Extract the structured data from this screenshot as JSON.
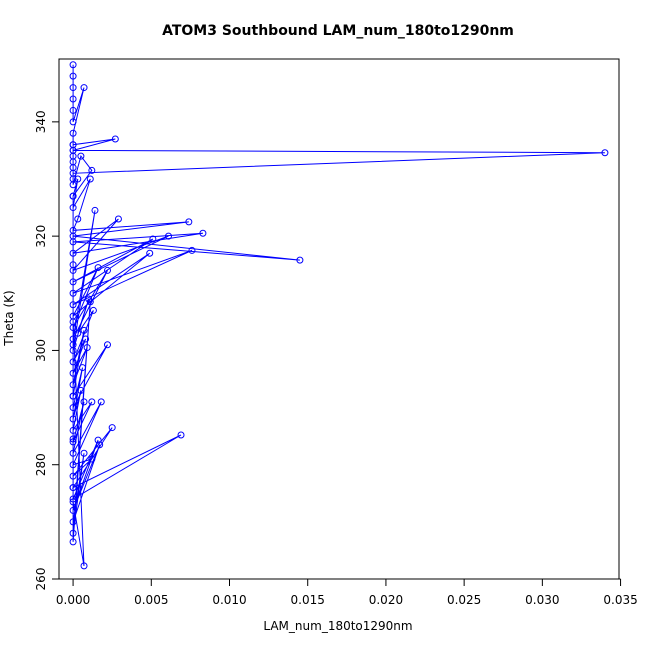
{
  "chart_data": {
    "type": "line",
    "title": "ATOM3 Southbound LAM_num_180to1290nm",
    "xlabel": "LAM_num_180to1290nm",
    "ylabel": "Theta (K)",
    "xlim": [
      -0.0009,
      0.0349
    ],
    "ylim": [
      260,
      351
    ],
    "x_ticks": [
      0.0,
      0.005,
      0.01,
      0.015,
      0.02,
      0.025,
      0.03,
      0.035
    ],
    "x_tick_labels": [
      "0.000",
      "0.005",
      "0.010",
      "0.015",
      "0.020",
      "0.025",
      "0.030",
      "0.035"
    ],
    "y_ticks": [
      260,
      280,
      300,
      320,
      340
    ],
    "y_tick_labels": [
      "260",
      "280",
      "300",
      "320",
      "340"
    ],
    "grid": false,
    "legend": "none",
    "series_color": "#0000ff",
    "marker": "open-circle",
    "series": [
      {
        "x": [
          0.0,
          0.0,
          0.0,
          0.0,
          0.0,
          0.0,
          0.0007,
          0.0,
          0.0,
          0.0,
          0.0,
          0.0,
          0.0,
          0.0027,
          0.0,
          0.0,
          0.0,
          0.034,
          0.0,
          0.0,
          0.0005,
          0.0012,
          0.0,
          0.0003,
          0.0,
          0.0011,
          0.0003,
          0.0,
          0.0074,
          0.0,
          0.0145,
          0.0,
          0.0083,
          0.0,
          0.0029,
          0.0,
          0.0061,
          0.0,
          0.0051,
          0.0,
          0.0076,
          0.0,
          0.0049,
          0.0,
          0.0016,
          0.0,
          0.0022,
          0.0,
          0.0014,
          0.0,
          0.001,
          0.0003,
          0.0013,
          0.0,
          0.0008,
          0.0,
          0.0009,
          0.0,
          0.0007,
          0.0,
          0.0022,
          0.0,
          0.0006,
          0.0,
          0.0005,
          0.0,
          0.0012,
          0.0,
          0.0007,
          0.0,
          0.0018,
          0.0,
          0.0012,
          0.0,
          0.0025,
          0.0,
          0.0069,
          0.0,
          0.0016,
          0.0,
          0.0017,
          0.0,
          0.0007,
          0.0,
          0.0011,
          0.0,
          0.0,
          0.0,
          0.0,
          0.0,
          0.0,
          0.0,
          0.0007,
          0.0,
          0.0
        ],
        "y": [
          350,
          348,
          346,
          344,
          342,
          340,
          346,
          338,
          336,
          334,
          332,
          330,
          336,
          337,
          335,
          333,
          335,
          334.6,
          331,
          329,
          334,
          331.5,
          327,
          330,
          325,
          330,
          323,
          321,
          322.5,
          320,
          315.8,
          319,
          320.5,
          317,
          323,
          314,
          320,
          312,
          319.5,
          310,
          317.5,
          308,
          317,
          306,
          314.5,
          304,
          314,
          302,
          324.5,
          300,
          309,
          303,
          307,
          298,
          302,
          296,
          300.5,
          294,
          303.5,
          292,
          301,
          290,
          297,
          288,
          293,
          286,
          291,
          284,
          291,
          282,
          291,
          280,
          281,
          278,
          286.5,
          276,
          285.2,
          274,
          284.3,
          272,
          283.5,
          270,
          282,
          268,
          308.5,
          266.5,
          284.5,
          292,
          315,
          301,
          327,
          305,
          262.3,
          273.5,
          276
        ]
      }
    ]
  }
}
